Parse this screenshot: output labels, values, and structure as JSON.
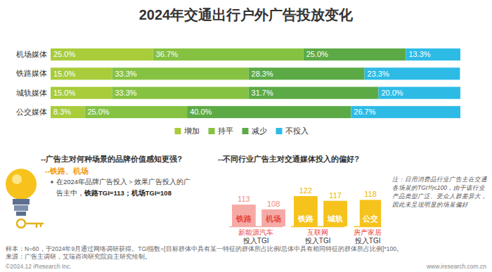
{
  "chart_data": [
    {
      "type": "bar",
      "title": "2024年交通出行户外广告投放变化",
      "orientation": "horizontal",
      "stacked": true,
      "data_labels": true,
      "legend": "bottom",
      "tick_labels": "y",
      "xlim": [
        0,
        100
      ],
      "categories": [
        "机场媒体",
        "铁路媒体",
        "城轨媒体",
        "公交媒体"
      ],
      "series": [
        {
          "name": "增加",
          "color": "#a8cc3a",
          "values": [
            25.0,
            15.0,
            15.0,
            8.3
          ],
          "value_labels": [
            "25.0%",
            "15.0%",
            "15.0%",
            "8.3%"
          ]
        },
        {
          "name": "持平",
          "color": "#86c241",
          "values": [
            36.7,
            33.3,
            33.3,
            25.0
          ],
          "value_labels": [
            "36.7%",
            "33.3%",
            "33.3%",
            "25.0%"
          ]
        },
        {
          "name": "减少",
          "color": "#5caa45",
          "values": [
            25.0,
            28.3,
            31.7,
            40.0
          ],
          "value_labels": [
            "25.0%",
            "28.3%",
            "31.7%",
            "40.0%"
          ]
        },
        {
          "name": "不投入",
          "color": "#2dbbe6",
          "values": [
            13.3,
            23.3,
            20.0,
            26.7
          ],
          "value_labels": [
            "13.3%",
            "23.3%",
            "20.0%",
            "26.7%"
          ]
        }
      ]
    },
    {
      "type": "bar",
      "title": "--不同行业广告主对交通媒体投入的偏好?",
      "data_labels": true,
      "tick_labels": "x",
      "ylim": [
        90,
        125
      ],
      "groups": [
        {
          "name": "新能源汽车",
          "axis_label": "投入TGI",
          "categories": [
            "铁路",
            "机场"
          ],
          "values": [
            113,
            108
          ],
          "color": "#f5aaa6"
        },
        {
          "name": "互联网",
          "axis_label": "投入TGI",
          "categories": [
            "铁路",
            "城轨"
          ],
          "values": [
            122,
            117
          ],
          "color": "#f6c21c"
        },
        {
          "name": "房产家居",
          "axis_label": "投入TGI",
          "categories": [
            "公交"
          ],
          "values": [
            118
          ],
          "color": "#f6c21c"
        }
      ]
    }
  ],
  "page": {
    "left_heading": "--广告主对何种场景的品牌价值感知更强?",
    "highlight": "--铁路、机场",
    "bullet_line1": "在2024年品牌广告投入＞效果广告投入的广",
    "bullet_line2": "告主中，",
    "bullet_emphasis": "铁路TGI=113；机场TGI=108",
    "note": [
      "注：日用消费品行业广告主在交通",
      "各场景的TGI均≤100，由于该行业",
      "产品类型广泛、受众人群差异大，",
      "因此未呈现明显的场景偏好"
    ],
    "sample": "样本：N=60，于2024年9月通过网络调研获得。TGI指数=[目标群体中具有某一特征的群体所占比例/总体中具有相同特征的群体所占比例]*100。",
    "source": "来源：广告主调研，艾瑞咨询研究院自主研究绘制。",
    "copyright": "©2024.12 iResearch Inc.",
    "website": "www.iresearch.com.cn"
  }
}
